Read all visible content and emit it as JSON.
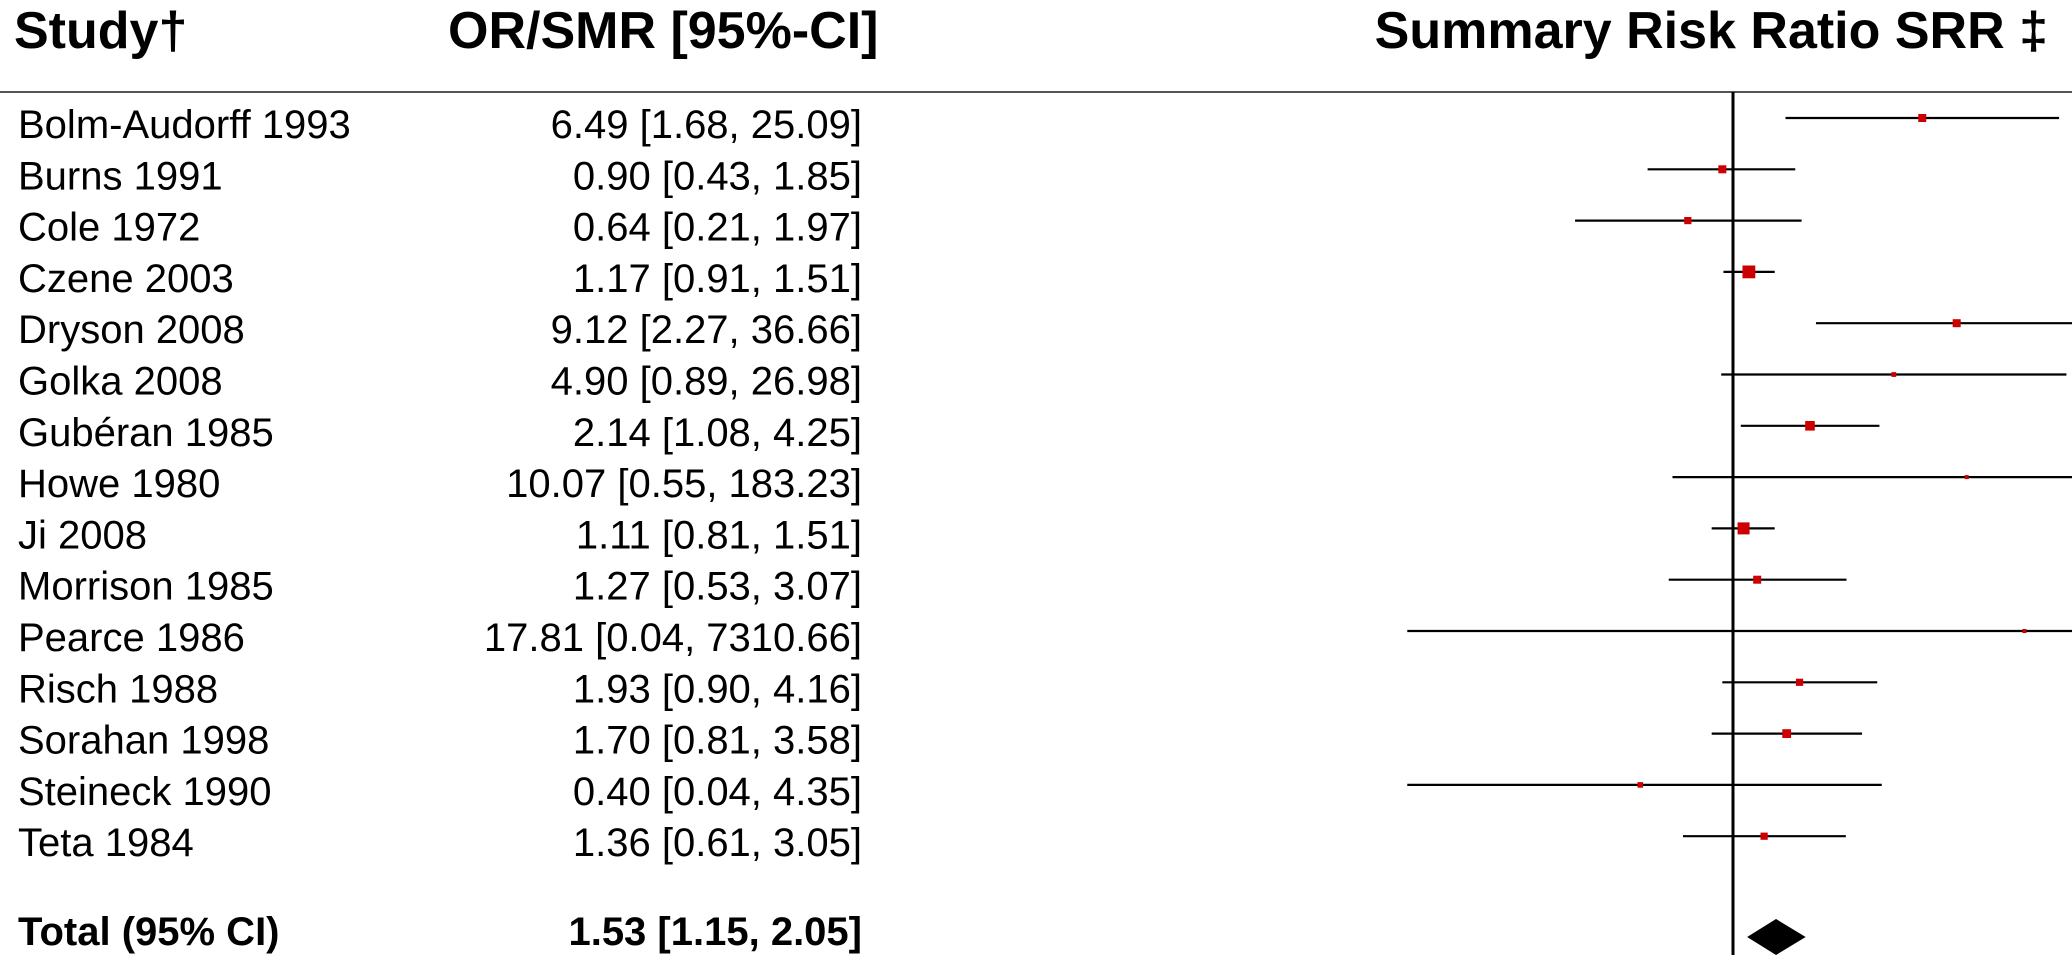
{
  "header": {
    "study": "Study†",
    "estimate": "OR/SMR [95%-CI]",
    "plot": "Summary Risk Ratio SRR ‡"
  },
  "chart_data": {
    "type": "forest",
    "scale": "log",
    "reference": 1,
    "xlim": [
      0.01,
      100
    ],
    "colors": {
      "study": "#cc0000",
      "total": "#000000",
      "line": "#000000"
    },
    "studies": [
      {
        "name": "Bolm-Audorff 1993",
        "text": "6.49 [1.68, 25.09]",
        "est": 6.49,
        "lo": 1.68,
        "hi": 25.09,
        "w": 1.0
      },
      {
        "name": "Burns 1991",
        "text": "0.90 [0.43, 1.85]",
        "est": 0.9,
        "lo": 0.43,
        "hi": 1.85,
        "w": 1.0
      },
      {
        "name": "Cole 1972",
        "text": "0.64 [0.21, 1.97]",
        "est": 0.64,
        "lo": 0.21,
        "hi": 1.97,
        "w": 0.9
      },
      {
        "name": "Czene 2003",
        "text": "1.17 [0.91, 1.51]",
        "est": 1.17,
        "lo": 0.91,
        "hi": 1.51,
        "w": 1.6
      },
      {
        "name": "Dryson 2008",
        "text": "9.12 [2.27, 36.66]",
        "est": 9.12,
        "lo": 2.27,
        "hi": 36.66,
        "w": 1.0
      },
      {
        "name": "Golka 2008",
        "text": "4.90 [0.89, 26.98]",
        "est": 4.9,
        "lo": 0.89,
        "hi": 26.98,
        "w": 0.6
      },
      {
        "name": "Gubéran 1985",
        "text": "2.14 [1.08, 4.25]",
        "est": 2.14,
        "lo": 1.08,
        "hi": 4.25,
        "w": 1.2
      },
      {
        "name": "Howe 1980",
        "text": "10.07 [0.55, 183.23]",
        "est": 10.07,
        "lo": 0.55,
        "hi": 183.23,
        "w": 0.5
      },
      {
        "name": "Ji 2008",
        "text": "1.11 [0.81, 1.51]",
        "est": 1.11,
        "lo": 0.81,
        "hi": 1.51,
        "w": 1.5
      },
      {
        "name": "Morrison 1985",
        "text": "1.27 [0.53, 3.07]",
        "est": 1.27,
        "lo": 0.53,
        "hi": 3.07,
        "w": 1.0
      },
      {
        "name": "Pearce 1986",
        "text": "17.81 [0.04, 7310.66]",
        "est": 17.81,
        "lo": 0.04,
        "hi": 7310.66,
        "w": 0.5
      },
      {
        "name": "Risch 1988",
        "text": "1.93 [0.90, 4.16]",
        "est": 1.93,
        "lo": 0.9,
        "hi": 4.16,
        "w": 0.9
      },
      {
        "name": "Sorahan 1998",
        "text": "1.70 [0.81, 3.58]",
        "est": 1.7,
        "lo": 0.81,
        "hi": 3.58,
        "w": 1.1
      },
      {
        "name": "Steineck 1990",
        "text": "0.40 [0.04, 4.35]",
        "est": 0.4,
        "lo": 0.04,
        "hi": 4.35,
        "w": 0.7
      },
      {
        "name": "Teta 1984",
        "text": "1.36 [0.61, 3.05]",
        "est": 1.36,
        "lo": 0.61,
        "hi": 3.05,
        "w": 0.9
      }
    ],
    "total": {
      "name": "Total (95% CI)",
      "text": "1.53 [1.15, 2.05]",
      "est": 1.53,
      "lo": 1.15,
      "hi": 2.05
    }
  }
}
